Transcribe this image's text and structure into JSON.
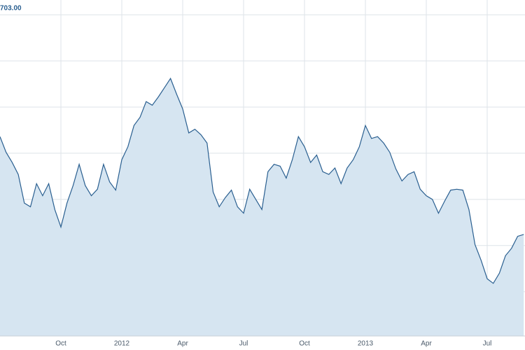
{
  "chart_data": {
    "type": "area",
    "categories": [
      null,
      null,
      null,
      null,
      null,
      null,
      null,
      null,
      null,
      null,
      "Oct",
      null,
      null,
      null,
      null,
      null,
      null,
      null,
      null,
      null,
      "2012",
      null,
      null,
      null,
      null,
      null,
      null,
      null,
      null,
      null,
      "Apr",
      null,
      null,
      null,
      null,
      null,
      null,
      null,
      null,
      null,
      "Jul",
      null,
      null,
      null,
      null,
      null,
      null,
      null,
      null,
      null,
      "Oct",
      null,
      null,
      null,
      null,
      null,
      null,
      null,
      null,
      null,
      "2013",
      null,
      null,
      null,
      null,
      null,
      null,
      null,
      null,
      null,
      "Apr",
      null,
      null,
      null,
      null,
      null,
      null,
      null,
      null,
      null,
      "Jul",
      null,
      null,
      null,
      null,
      null,
      null
    ],
    "values": [
      571,
      554,
      543,
      530,
      499,
      495,
      520,
      507,
      520,
      492,
      473,
      499,
      518,
      541,
      518,
      507,
      514,
      541,
      522,
      513,
      546,
      560,
      583,
      592,
      609,
      605,
      614,
      624,
      634,
      617,
      601,
      575,
      579,
      573,
      564,
      511,
      495,
      505,
      513,
      495,
      488,
      514,
      503,
      492,
      533,
      541,
      539,
      526,
      546,
      571,
      560,
      543,
      551,
      533,
      530,
      537,
      520,
      537,
      546,
      560,
      583,
      569,
      571,
      564,
      554,
      536,
      523,
      530,
      533,
      514,
      507,
      503,
      488,
      501,
      513,
      514,
      513,
      492,
      454,
      437,
      417,
      412,
      423,
      442,
      450,
      463,
      465
    ],
    "color": "#2a5f90",
    "fill": "#d6e5f1",
    "ylim": [
      355,
      719
    ],
    "yticks": [
      {
        "value": 703,
        "label": "703.00"
      },
      {
        "value": 653,
        "label": null
      },
      {
        "value": 603,
        "label": null
      },
      {
        "value": 553,
        "label": null
      },
      {
        "value": 503,
        "label": null
      },
      {
        "value": 453,
        "label": null
      },
      {
        "value": 403,
        "label": null
      }
    ],
    "grid": true
  }
}
